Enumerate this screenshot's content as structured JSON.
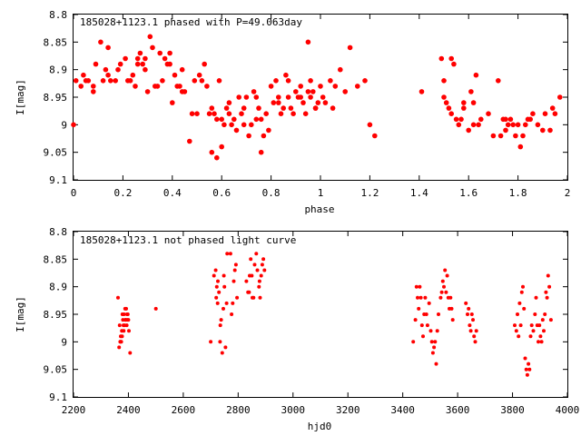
{
  "chart_data": [
    {
      "type": "scatter",
      "title": "185028+1123.1 phased with P=49.063day",
      "xlabel": "phase",
      "ylabel": "I[mag]",
      "xlim": [
        0,
        2
      ],
      "ylim": [
        8.8,
        9.1
      ],
      "y_inverted": true,
      "grid": false,
      "legend": "none",
      "marker_color": "#ff0000",
      "xticks": [
        "0",
        "0.2",
        "0.4",
        "0.6",
        "0.8",
        "1",
        "1.2",
        "1.4",
        "1.6",
        "1.8",
        "2"
      ],
      "yticks": [
        "8.8",
        "8.85",
        "8.9",
        "8.95",
        "9",
        "9.05",
        "9.1"
      ],
      "series": [
        {
          "x": [
            0.0,
            0.01,
            0.03,
            0.04,
            0.05,
            0.06,
            0.08,
            0.09,
            0.11,
            0.12,
            0.13,
            0.14,
            0.15,
            0.17,
            0.19,
            0.21,
            0.22,
            0.23,
            0.24,
            0.25,
            0.26,
            0.27,
            0.28,
            0.29,
            0.3,
            0.31,
            0.32,
            0.33,
            0.35,
            0.36,
            0.37,
            0.38,
            0.39,
            0.4,
            0.41,
            0.42,
            0.43,
            0.44,
            0.45,
            0.47,
            0.48,
            0.5,
            0.51,
            0.52,
            0.53,
            0.55,
            0.56,
            0.57,
            0.58,
            0.59,
            0.6,
            0.61,
            0.62,
            0.63,
            0.64,
            0.65,
            0.66,
            0.67,
            0.68,
            0.69,
            0.7,
            0.71,
            0.72,
            0.73,
            0.74,
            0.75,
            0.76,
            0.77,
            0.78,
            0.79,
            0.8,
            0.81,
            0.82,
            0.83,
            0.84,
            0.85,
            0.86,
            0.87,
            0.88,
            0.89,
            0.9,
            0.91,
            0.92,
            0.93,
            0.94,
            0.95,
            0.96,
            0.97,
            0.98,
            0.99,
            1.0,
            1.02,
            1.04,
            1.06,
            1.08,
            1.1,
            1.12,
            1.15,
            1.18,
            1.2,
            1.22,
            0.08,
            0.14,
            0.18,
            0.26,
            0.34,
            0.39,
            0.49,
            0.54,
            0.63,
            0.69,
            0.74,
            0.83,
            0.92,
            0.95,
            0.98,
            0.56,
            0.58,
            0.6,
            0.76,
            0.96,
            1.01,
            1.05,
            0.44,
            0.87,
            0.29
          ],
          "y": [
            9.0,
            8.92,
            8.93,
            8.91,
            8.92,
            8.92,
            8.94,
            8.89,
            8.85,
            8.92,
            8.9,
            8.91,
            8.92,
            8.92,
            8.89,
            8.88,
            8.92,
            8.92,
            8.91,
            8.93,
            8.89,
            8.87,
            8.89,
            8.9,
            8.94,
            8.84,
            8.86,
            8.93,
            8.87,
            8.92,
            8.88,
            8.89,
            8.89,
            8.96,
            8.91,
            8.93,
            8.93,
            8.9,
            8.94,
            9.03,
            8.98,
            8.98,
            8.91,
            8.92,
            8.89,
            8.98,
            8.97,
            8.98,
            8.99,
            8.92,
            8.99,
            9.0,
            8.97,
            8.98,
            9.0,
            8.99,
            9.01,
            8.95,
            8.98,
            9.0,
            8.95,
            9.02,
            9.0,
            8.94,
            8.95,
            8.97,
            8.99,
            9.02,
            8.98,
            9.01,
            8.93,
            8.96,
            8.92,
            8.95,
            8.98,
            8.97,
            8.91,
            8.95,
            8.97,
            8.98,
            8.94,
            8.95,
            8.93,
            8.96,
            8.98,
            8.85,
            8.95,
            8.94,
            8.97,
            8.96,
            8.93,
            8.96,
            8.92,
            8.93,
            8.9,
            8.94,
            8.86,
            8.93,
            8.92,
            9.0,
            9.02,
            8.93,
            8.86,
            8.9,
            8.88,
            8.93,
            8.87,
            8.92,
            8.93,
            8.96,
            8.97,
            8.99,
            8.96,
            8.95,
            8.94,
            8.97,
            9.05,
            9.06,
            9.04,
            9.05,
            8.92,
            8.95,
            8.97,
            8.94,
            8.92,
            8.88
          ],
          "x2": [
            1.41,
            1.49,
            1.5,
            1.51,
            1.52,
            1.53,
            1.54,
            1.55,
            1.56,
            1.57,
            1.58,
            1.6,
            1.61,
            1.62,
            1.63,
            1.64,
            1.65,
            1.68,
            1.7,
            1.72,
            1.73,
            1.74,
            1.75,
            1.76,
            1.77,
            1.78,
            1.79,
            1.8,
            1.81,
            1.82,
            1.83,
            1.84,
            1.86,
            1.88,
            1.9,
            1.91,
            1.93,
            1.94,
            1.95,
            1.97,
            1.5,
            1.53,
            1.58,
            1.62,
            1.75,
            1.85
          ],
          "y2": [
            8.94,
            8.88,
            8.92,
            8.96,
            8.97,
            8.88,
            8.89,
            8.99,
            9.0,
            8.99,
            8.96,
            9.01,
            8.94,
            8.96,
            8.91,
            9.0,
            8.99,
            8.98,
            9.02,
            8.92,
            9.02,
            8.99,
            8.99,
            9.0,
            8.99,
            9.0,
            9.02,
            9.0,
            9.04,
            9.02,
            9.0,
            8.99,
            8.98,
            9.0,
            9.01,
            8.98,
            9.01,
            8.97,
            8.98,
            8.95,
            8.95,
            8.98,
            8.97,
            9.0,
            9.01,
            8.99
          ]
        }
      ]
    },
    {
      "type": "scatter",
      "title": "185028+1123.1 not phased light curve",
      "xlabel": "hjd0",
      "ylabel": "I[mag]",
      "xlim": [
        2200,
        4000
      ],
      "ylim": [
        8.8,
        9.1
      ],
      "y_inverted": true,
      "grid": false,
      "legend": "none",
      "marker_color": "#ff0000",
      "xticks": [
        "2200",
        "2400",
        "2600",
        "2800",
        "3000",
        "3200",
        "3400",
        "3600",
        "3800",
        "4000"
      ],
      "yticks": [
        "8.8",
        "8.85",
        "8.9",
        "8.95",
        "9",
        "9.05",
        "9.1"
      ],
      "series": [
        {
          "x": [
            2362,
            2368,
            2370,
            2372,
            2374,
            2376,
            2378,
            2380,
            2382,
            2384,
            2386,
            2388,
            2390,
            2392,
            2394,
            2396,
            2398,
            2400,
            2402,
            2406,
            2366,
            2371,
            2377,
            2383,
            2389,
            2395,
            2500,
            2700,
            2712,
            2718,
            2722,
            2726,
            2730,
            2734,
            2738,
            2742,
            2746,
            2750,
            2754,
            2758,
            2760,
            2720,
            2725,
            2735,
            2748,
            2772,
            2776,
            2780,
            2784,
            2788,
            2792,
            2796,
            2830,
            2836,
            2842,
            2846,
            2850,
            2856,
            2860,
            2866,
            2870,
            2876,
            2880,
            2884,
            2888,
            2892,
            2896,
            2840,
            2852,
            2878,
            3438,
            3446,
            3450,
            3454,
            3458,
            3462,
            3466,
            3470,
            3474,
            3478,
            3482,
            3486,
            3490,
            3496,
            3502,
            3506,
            3510,
            3514,
            3518,
            3522,
            3526,
            3530,
            3538,
            3542,
            3546,
            3550,
            3554,
            3558,
            3562,
            3566,
            3570,
            3574,
            3578,
            3582,
            3630,
            3636,
            3640,
            3644,
            3648,
            3652,
            3656,
            3660,
            3664,
            3668,
            3808,
            3814,
            3818,
            3822,
            3826,
            3830,
            3834,
            3838,
            3842,
            3846,
            3850,
            3854,
            3858,
            3862,
            3866,
            3870,
            3876,
            3882,
            3886,
            3890,
            3894,
            3898,
            3902,
            3906,
            3910,
            3914,
            3918,
            3922,
            3926,
            3930,
            3934,
            3940
          ],
          "y": [
            8.92,
            8.97,
            9.0,
            8.99,
            9.0,
            8.98,
            8.95,
            8.96,
            8.97,
            8.95,
            8.97,
            8.94,
            8.96,
            8.94,
            8.97,
            8.96,
            8.95,
            8.96,
            8.98,
            9.02,
            9.01,
            9.0,
            8.99,
            8.98,
            8.96,
            8.95,
            8.94,
            9.0,
            8.88,
            8.87,
            8.9,
            8.89,
            8.91,
            9.0,
            8.96,
            9.02,
            8.94,
            8.9,
            9.01,
            8.93,
            8.84,
            8.92,
            8.93,
            8.97,
            8.88,
            8.84,
            8.95,
            8.93,
            8.89,
            8.87,
            8.86,
            8.92,
            8.89,
            8.91,
            8.88,
            8.85,
            8.88,
            8.92,
            8.86,
            8.84,
            8.87,
            8.9,
            8.92,
            8.88,
            8.86,
            8.85,
            8.87,
            8.91,
            8.92,
            8.89,
            9.0,
            8.96,
            8.9,
            8.92,
            8.94,
            8.9,
            8.92,
            8.97,
            8.99,
            8.95,
            8.92,
            8.95,
            8.97,
            8.93,
            8.98,
            9.0,
            9.02,
            9.01,
            9.0,
            9.04,
            8.98,
            8.95,
            8.92,
            8.91,
            8.89,
            8.9,
            8.87,
            8.91,
            8.88,
            8.92,
            8.94,
            8.92,
            8.94,
            8.96,
            8.93,
            8.95,
            8.94,
            8.97,
            8.98,
            8.95,
            8.96,
            8.99,
            9.0,
            8.98,
            8.97,
            8.98,
            8.95,
            8.99,
            8.93,
            8.97,
            8.91,
            8.9,
            8.94,
            9.03,
            9.05,
            9.06,
            9.04,
            9.05,
            8.99,
            8.97,
            8.98,
            8.95,
            8.92,
            8.97,
            9.0,
            8.97,
            8.99,
            9.0,
            8.96,
            8.98,
            8.95,
            8.91,
            8.92,
            8.88,
            8.9,
            8.96
          ]
        }
      ]
    }
  ]
}
